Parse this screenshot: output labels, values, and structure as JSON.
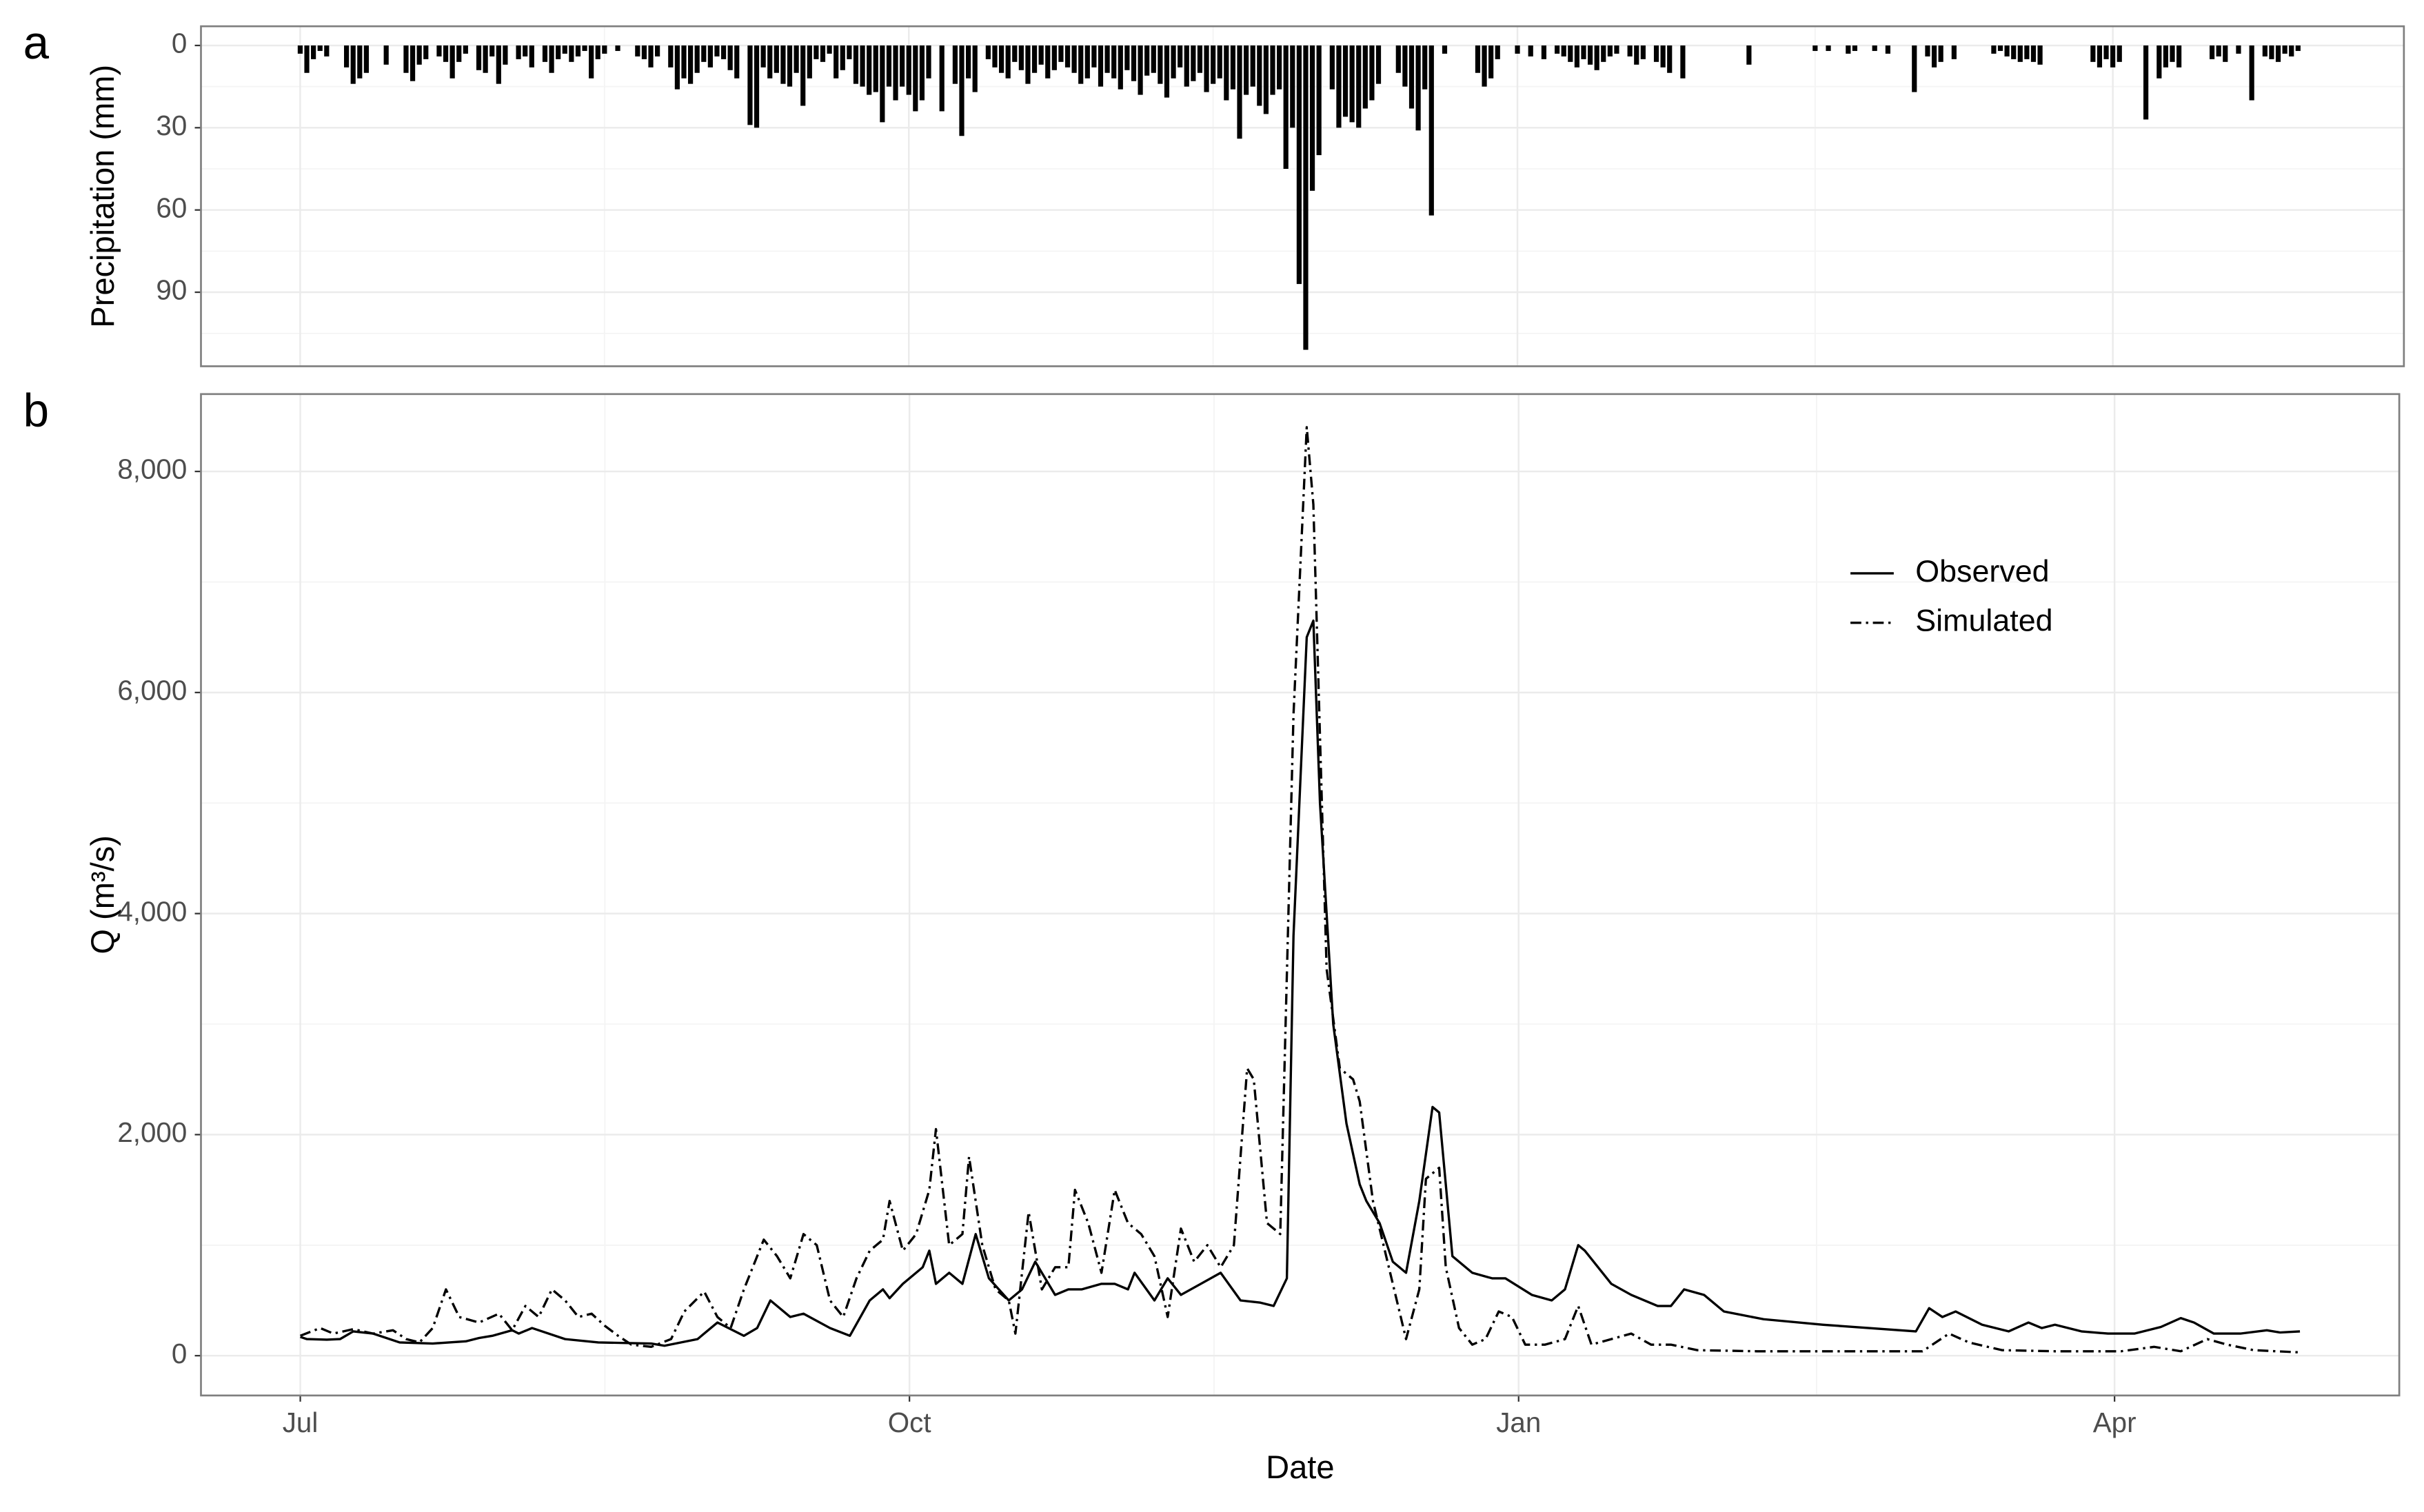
{
  "chart_data": [
    {
      "type": "bar",
      "tag": "a",
      "ylabel": "Precipitation (mm)",
      "color": "#000000",
      "grid": true,
      "show_xtick_labels": false,
      "xlim": [
        -15,
        318
      ],
      "ylim": [
        117,
        -7
      ],
      "yticks": [
        0,
        30,
        60,
        90
      ],
      "xticks": [
        0,
        92,
        184,
        274
      ],
      "x": [
        0,
        1,
        2,
        3,
        4,
        7,
        8,
        9,
        10,
        13,
        16,
        17,
        18,
        19,
        21,
        22,
        23,
        24,
        25,
        27,
        28,
        29,
        30,
        31,
        33,
        34,
        35,
        37,
        38,
        39,
        40,
        41,
        42,
        43,
        44,
        45,
        46,
        48,
        51,
        52,
        53,
        54,
        56,
        57,
        58,
        59,
        60,
        61,
        62,
        63,
        64,
        65,
        66,
        68,
        69,
        70,
        71,
        72,
        73,
        74,
        75,
        76,
        77,
        78,
        79,
        80,
        81,
        82,
        83,
        84,
        85,
        86,
        87,
        88,
        89,
        90,
        91,
        92,
        93,
        94,
        95,
        97,
        99,
        100,
        101,
        102,
        104,
        105,
        106,
        107,
        108,
        109,
        110,
        111,
        112,
        113,
        114,
        115,
        116,
        117,
        118,
        119,
        120,
        121,
        122,
        123,
        124,
        125,
        126,
        127,
        128,
        129,
        130,
        131,
        132,
        133,
        134,
        135,
        136,
        137,
        138,
        139,
        140,
        141,
        142,
        143,
        144,
        145,
        146,
        147,
        148,
        149,
        150,
        151,
        152,
        153,
        154,
        156,
        157,
        158,
        159,
        160,
        161,
        162,
        163,
        166,
        167,
        168,
        169,
        170,
        171,
        173,
        178,
        179,
        180,
        181,
        184,
        186,
        188,
        190,
        191,
        192,
        193,
        194,
        195,
        196,
        197,
        198,
        199,
        201,
        202,
        203,
        205,
        206,
        207,
        209,
        219,
        229,
        231,
        234,
        235,
        238,
        240,
        244,
        246,
        247,
        248,
        250,
        256,
        257,
        258,
        259,
        260,
        261,
        262,
        263,
        271,
        272,
        273,
        274,
        275,
        279,
        281,
        282,
        283,
        284,
        289,
        290,
        291,
        293,
        295,
        297,
        298,
        299,
        300,
        301,
        302
      ],
      "values": [
        3,
        10,
        5,
        2,
        4,
        8,
        14,
        12,
        10,
        7,
        10,
        13,
        7,
        5,
        4,
        6,
        12,
        6,
        3,
        9,
        10,
        4,
        14,
        7,
        5,
        4,
        8,
        6,
        10,
        5,
        3,
        6,
        4,
        2,
        12,
        5,
        3,
        2,
        4,
        5,
        8,
        4,
        8,
        16,
        12,
        14,
        10,
        6,
        8,
        4,
        5,
        9,
        12,
        29,
        30,
        8,
        12,
        10,
        14,
        15,
        10,
        22,
        12,
        5,
        6,
        3,
        12,
        9,
        5,
        14,
        15,
        18,
        17,
        28,
        15,
        20,
        15,
        18,
        24,
        20,
        12,
        24,
        14,
        33,
        12,
        17,
        5,
        8,
        10,
        12,
        6,
        9,
        14,
        10,
        7,
        12,
        9,
        6,
        8,
        10,
        14,
        12,
        8,
        15,
        10,
        12,
        16,
        9,
        13,
        18,
        11,
        10,
        14,
        19,
        12,
        8,
        15,
        13,
        10,
        17,
        14,
        12,
        20,
        16,
        34,
        18,
        15,
        22,
        25,
        18,
        16,
        45,
        30,
        87,
        111,
        53,
        40,
        16,
        30,
        26,
        28,
        30,
        23,
        20,
        14,
        10,
        15,
        23,
        31,
        16,
        62,
        3,
        10,
        15,
        12,
        5,
        3,
        4,
        5,
        3,
        4,
        6,
        8,
        5,
        7,
        9,
        6,
        4,
        3,
        4,
        7,
        5,
        6,
        8,
        10,
        12,
        7,
        2,
        2,
        3,
        2,
        2,
        3,
        17,
        4,
        8,
        6,
        5,
        3,
        2,
        4,
        5,
        6,
        5,
        6,
        7,
        6,
        8,
        5,
        8,
        6,
        27,
        12,
        8,
        6,
        8,
        5,
        4,
        6,
        3,
        20,
        4,
        5,
        6,
        3,
        4,
        2
      ]
    },
    {
      "type": "line",
      "tag": "b",
      "xlabel": "Date",
      "ylabel": "Q (m³/s)",
      "grid": true,
      "legend": "top right",
      "xlim": [
        -15,
        317
      ],
      "ylim": [
        -360,
        8700
      ],
      "xticks": [
        {
          "value": 0,
          "label": "Jul"
        },
        {
          "value": 92,
          "label": "Oct"
        },
        {
          "value": 184,
          "label": "Jan"
        },
        {
          "value": 274,
          "label": "Apr"
        }
      ],
      "yticks": [
        0,
        {
          "value": 2000,
          "label": "2,000"
        },
        {
          "value": 4000,
          "label": "4,000"
        },
        {
          "value": 6000,
          "label": "6,000"
        },
        {
          "value": 8000,
          "label": "8,000"
        }
      ],
      "series": [
        {
          "name": "Observed",
          "color": "#000000",
          "dash": "solid",
          "x": [
            0,
            1,
            4,
            6,
            8,
            11,
            15,
            20,
            25,
            27,
            29,
            32,
            33,
            35,
            40,
            45,
            53,
            55,
            60,
            63,
            67,
            69,
            71,
            74,
            76,
            80,
            83,
            86,
            88,
            89,
            91,
            94,
            95,
            96,
            98,
            100,
            102,
            104,
            107,
            109,
            111,
            114,
            116,
            118,
            121,
            123,
            125,
            126,
            129,
            131,
            133,
            136,
            139,
            142,
            145,
            147,
            149,
            150,
            152,
            153,
            154,
            156,
            158,
            160,
            161,
            163,
            165,
            167,
            169,
            171,
            172,
            174,
            177,
            180,
            182,
            186,
            189,
            191,
            193,
            194,
            198,
            201,
            205,
            207,
            209,
            212,
            215,
            221,
            230,
            244,
            246,
            248,
            250,
            254,
            258,
            261,
            263,
            265,
            269,
            273,
            277,
            281,
            284,
            286,
            289,
            293,
            297,
            299,
            302
          ],
          "values": [
            170,
            150,
            145,
            150,
            220,
            200,
            120,
            110,
            130,
            160,
            180,
            230,
            200,
            250,
            150,
            120,
            110,
            90,
            150,
            300,
            180,
            250,
            500,
            350,
            380,
            250,
            180,
            500,
            600,
            520,
            650,
            800,
            950,
            650,
            750,
            650,
            1100,
            700,
            500,
            600,
            850,
            550,
            600,
            600,
            650,
            650,
            600,
            750,
            500,
            700,
            550,
            650,
            750,
            500,
            480,
            450,
            700,
            3800,
            6500,
            6650,
            5000,
            3000,
            2100,
            1550,
            1400,
            1200,
            850,
            750,
            1400,
            2250,
            2200,
            900,
            750,
            700,
            700,
            550,
            500,
            600,
            1000,
            950,
            650,
            550,
            450,
            450,
            600,
            550,
            400,
            330,
            280,
            220,
            430,
            350,
            400,
            280,
            220,
            300,
            250,
            280,
            220,
            200,
            200,
            260,
            340,
            300,
            200,
            200,
            230,
            210,
            220
          ]
        },
        {
          "name": "Simulated",
          "color": "#000000",
          "dash": "dashdot",
          "x": [
            0,
            3,
            5,
            8,
            11,
            14,
            16,
            18,
            20,
            22,
            24,
            27,
            30,
            32,
            34,
            36,
            38,
            40,
            42,
            44,
            46,
            48,
            50,
            53,
            56,
            58,
            61,
            63,
            65,
            67,
            70,
            72,
            74,
            76,
            78,
            80,
            82,
            84,
            86,
            88,
            89,
            91,
            93,
            95,
            96,
            98,
            100,
            101,
            103,
            105,
            107,
            108,
            110,
            112,
            114,
            116,
            117,
            119,
            121,
            123,
            125,
            127,
            129,
            131,
            133,
            135,
            137,
            139,
            141,
            143,
            144,
            146,
            148,
            150,
            152,
            153,
            155,
            157,
            159,
            160,
            162,
            164,
            166,
            167,
            169,
            170,
            172,
            173,
            175,
            177,
            179,
            181,
            183,
            185,
            188,
            191,
            193,
            195,
            198,
            201,
            204,
            207,
            211,
            220,
            240,
            245,
            249,
            252,
            257,
            265,
            275,
            280,
            284,
            288,
            291,
            295,
            302
          ],
          "values": [
            180,
            250,
            200,
            240,
            200,
            230,
            150,
            120,
            250,
            600,
            350,
            300,
            380,
            230,
            450,
            350,
            600,
            500,
            350,
            380,
            270,
            180,
            100,
            80,
            150,
            400,
            580,
            350,
            250,
            600,
            1050,
            900,
            700,
            1100,
            1000,
            500,
            350,
            700,
            950,
            1050,
            1400,
            950,
            1100,
            1500,
            2050,
            1000,
            1100,
            1800,
            1000,
            600,
            500,
            200,
            1300,
            600,
            800,
            800,
            1500,
            1200,
            750,
            1500,
            1200,
            1100,
            900,
            350,
            1150,
            850,
            1000,
            800,
            1000,
            2600,
            2500,
            1200,
            1100,
            5800,
            8400,
            7700,
            3500,
            2600,
            2500,
            2300,
            1400,
            900,
            400,
            150,
            600,
            1600,
            1700,
            800,
            250,
            100,
            150,
            400,
            350,
            100,
            100,
            150,
            450,
            100,
            150,
            200,
            100,
            100,
            50,
            40,
            40,
            40,
            200,
            120,
            50,
            40,
            40,
            80,
            40,
            150,
            100,
            50,
            30
          ]
        }
      ]
    }
  ]
}
